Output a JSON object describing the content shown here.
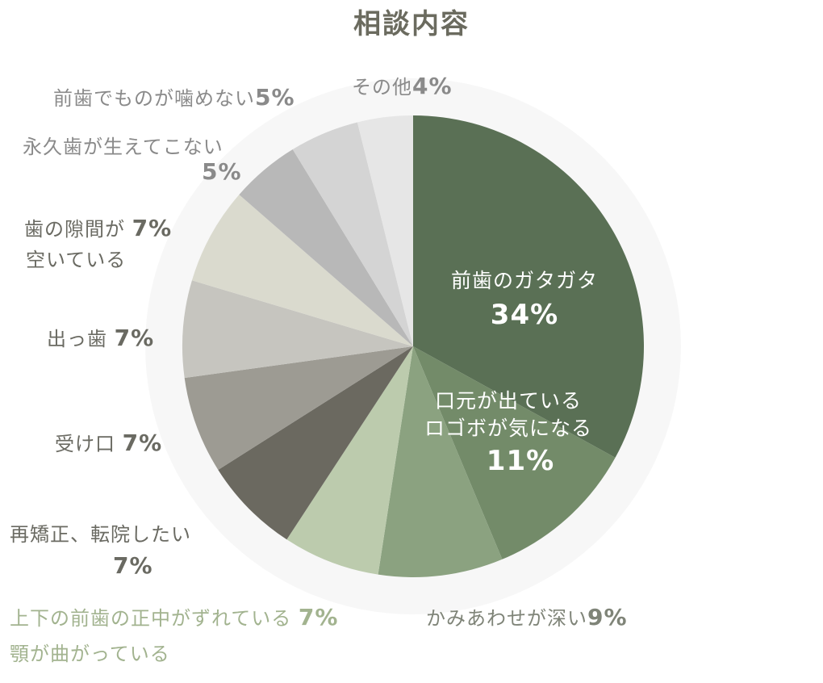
{
  "chart_data": {
    "type": "pie",
    "title": "相談内容",
    "start_angle_deg": 0,
    "direction": "clockwise",
    "slices": [
      {
        "label": "前歯のガタガタ",
        "value": 34,
        "color": "#5a7055"
      },
      {
        "label": "口元が出ている ロゴボが気になる",
        "value": 11,
        "color": "#738b69"
      },
      {
        "label": "かみあわせが深い",
        "value": 9,
        "color": "#8ba280"
      },
      {
        "label": "上下の前歯の正中がずれている 顎が曲がっている",
        "value": 7,
        "color": "#bccbad"
      },
      {
        "label": "再矯正、転院したい",
        "value": 7,
        "color": "#6b6960"
      },
      {
        "label": "受け口",
        "value": 7,
        "color": "#9d9b93"
      },
      {
        "label": "出っ歯",
        "value": 7,
        "color": "#c6c5bf"
      },
      {
        "label": "歯の隙間が空いている",
        "value": 7,
        "color": "#dadace"
      },
      {
        "label": "永久歯が生えてこない",
        "value": 5,
        "color": "#b8b8b8"
      },
      {
        "label": "前歯でものが噛めない",
        "value": 5,
        "color": "#d4d4d4"
      },
      {
        "label": "その他",
        "value": 4,
        "color": "#e6e6e6"
      }
    ],
    "outer_ring_color": "#f7f7f7"
  },
  "title": "相談内容",
  "labels": {
    "front_crowding": {
      "line1": "前歯のガタガタ",
      "pct": "34%"
    },
    "protrusion_mouth": {
      "line1": "口元が出ている",
      "line2": "ロゴボが気になる",
      "pct": "11%"
    },
    "deep_bite": {
      "text": "かみあわせが深い",
      "pct": "9%"
    },
    "midline": {
      "line1": "上下の前歯の正中がずれている",
      "pct": "7%",
      "line2": "顎が曲がっている"
    },
    "retreatment": {
      "text": "再矯正、転院したい",
      "pct": "7%"
    },
    "underbite": {
      "text": "受け口",
      "pct": "7%"
    },
    "buck_teeth": {
      "text": "出っ歯",
      "pct": "7%"
    },
    "gaps": {
      "line1": "歯の隙間が",
      "pct": "7%",
      "line2": "空いている"
    },
    "no_permanent": {
      "text": "永久歯が生えてこない",
      "pct": "5%"
    },
    "cant_bite": {
      "text": "前歯でものが噛めない",
      "pct": "5%"
    },
    "other": {
      "text": "その他",
      "pct": "4%"
    }
  }
}
